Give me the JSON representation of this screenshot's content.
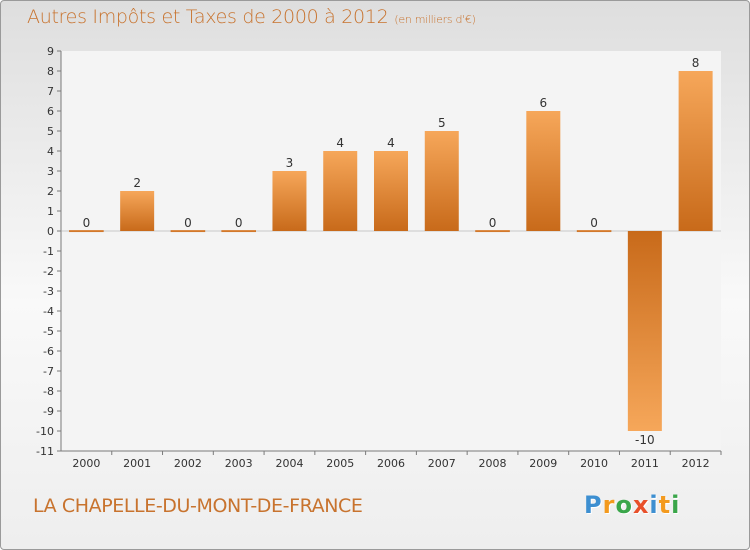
{
  "header": {
    "title": "Autres Impôts et Taxes de 2000 à 2012",
    "unit": "(en milliers d'€)"
  },
  "footer": {
    "commune": "LA CHAPELLE-DU-MONT-DE-FRANCE",
    "logo_text": "Proxiti"
  },
  "colors": {
    "bar_light": "#f6a75a",
    "bar_dark": "#c86a1a",
    "title": "#c8732e",
    "logo": [
      "#3d8fd1",
      "#f39a1e",
      "#3aa64a",
      "#e8502a",
      "#3d8fd1",
      "#f39a1e",
      "#3aa64a"
    ]
  },
  "chart_data": {
    "type": "bar",
    "title": "Autres Impôts et Taxes de 2000 à 2012",
    "xlabel": "",
    "ylabel": "",
    "categories": [
      "2000",
      "2001",
      "2002",
      "2003",
      "2004",
      "2005",
      "2006",
      "2007",
      "2008",
      "2009",
      "2010",
      "2011",
      "2012"
    ],
    "values": [
      0,
      2,
      0,
      0,
      3,
      4,
      4,
      5,
      0,
      6,
      0,
      -10,
      8
    ],
    "ylim": [
      -11,
      9
    ],
    "yticks": [
      9,
      8,
      7,
      6,
      5,
      4,
      3,
      2,
      1,
      0,
      -1,
      -2,
      -3,
      -4,
      -5,
      -6,
      -7,
      -8,
      -9,
      -10,
      -11
    ],
    "grid": false,
    "legend": "none"
  }
}
